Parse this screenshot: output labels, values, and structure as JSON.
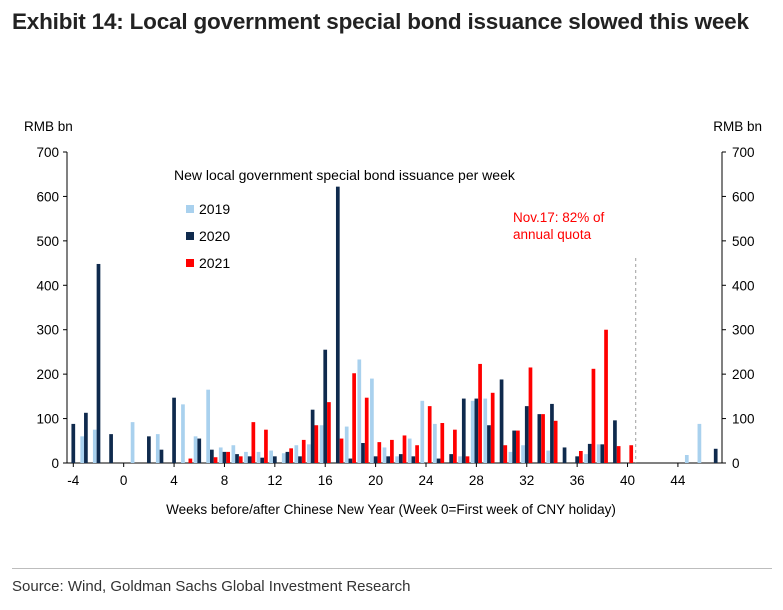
{
  "header": {
    "title": "Exhibit 14: Local government special bond issuance slowed this week"
  },
  "footer": {
    "source": "Source: Wind, Goldman Sachs Global Investment Research"
  },
  "chart_data": {
    "type": "bar",
    "title": "New local government special bond issuance per week",
    "xlabel": "Weeks before/after Chinese New Year (Week 0=First week of CNY holiday)",
    "ylabel_left": "RMB bn",
    "ylabel_right": "RMB bn",
    "ylim": [
      0,
      700
    ],
    "yticks": [
      0,
      100,
      200,
      300,
      400,
      500,
      600,
      700
    ],
    "xlim": [
      -4,
      47
    ],
    "xticks": [
      -4,
      0,
      4,
      8,
      12,
      16,
      20,
      24,
      28,
      32,
      36,
      40,
      44
    ],
    "legend_position": "top-left",
    "annotation": "Nov.17: 82% of\nannual quota",
    "annotation_marker_week": 41,
    "colors": {
      "2019": "#a9d1ee",
      "2020": "#0f2a4d",
      "2021": "#ff0000",
      "annotation": "#ff0000"
    },
    "series": [
      {
        "name": "2019",
        "color": "#a9d1ee",
        "x": [
          -3,
          -2,
          1,
          3,
          5,
          6,
          7,
          8,
          9,
          10,
          11,
          12,
          13,
          14,
          15,
          16,
          18,
          19,
          20,
          21,
          22,
          23,
          24,
          25,
          27,
          28,
          29,
          31,
          32,
          34,
          37,
          38,
          43,
          45,
          46
        ],
        "values": [
          60,
          75,
          92,
          65,
          132,
          60,
          165,
          35,
          40,
          25,
          25,
          28,
          22,
          40,
          42,
          85,
          82,
          233,
          190,
          35,
          15,
          55,
          140,
          88,
          15,
          140,
          145,
          25,
          40,
          28,
          20,
          42,
          0,
          18,
          88
        ]
      },
      {
        "name": "2020",
        "color": "#0f2a4d",
        "x": [
          -4,
          -3,
          -2,
          -1,
          2,
          3,
          4,
          6,
          7,
          8,
          9,
          10,
          11,
          12,
          13,
          14,
          15,
          16,
          17,
          18,
          19,
          20,
          21,
          22,
          23,
          25,
          26,
          27,
          28,
          29,
          30,
          31,
          32,
          33,
          34,
          35,
          36,
          37,
          38,
          39,
          45,
          47
        ],
        "values": [
          88,
          113,
          448,
          65,
          60,
          30,
          147,
          55,
          30,
          25,
          20,
          15,
          12,
          15,
          25,
          15,
          120,
          255,
          622,
          10,
          45,
          15,
          15,
          20,
          15,
          10,
          20,
          145,
          145,
          85,
          188,
          73,
          128,
          110,
          133,
          35,
          15,
          43,
          42,
          96,
          0,
          32
        ]
      },
      {
        "name": "2021",
        "color": "#ff0000",
        "x": [
          5,
          7,
          8,
          9,
          10,
          11,
          13,
          14,
          15,
          16,
          17,
          18,
          19,
          20,
          21,
          22,
          23,
          24,
          25,
          26,
          27,
          28,
          29,
          30,
          31,
          32,
          33,
          34,
          36,
          37,
          38,
          39,
          40
        ],
        "values": [
          10,
          13,
          25,
          15,
          92,
          75,
          33,
          52,
          85,
          137,
          55,
          202,
          147,
          47,
          52,
          62,
          40,
          128,
          90,
          75,
          15,
          223,
          158,
          40,
          73,
          215,
          110,
          95,
          27,
          212,
          300,
          38,
          40
        ]
      }
    ]
  }
}
